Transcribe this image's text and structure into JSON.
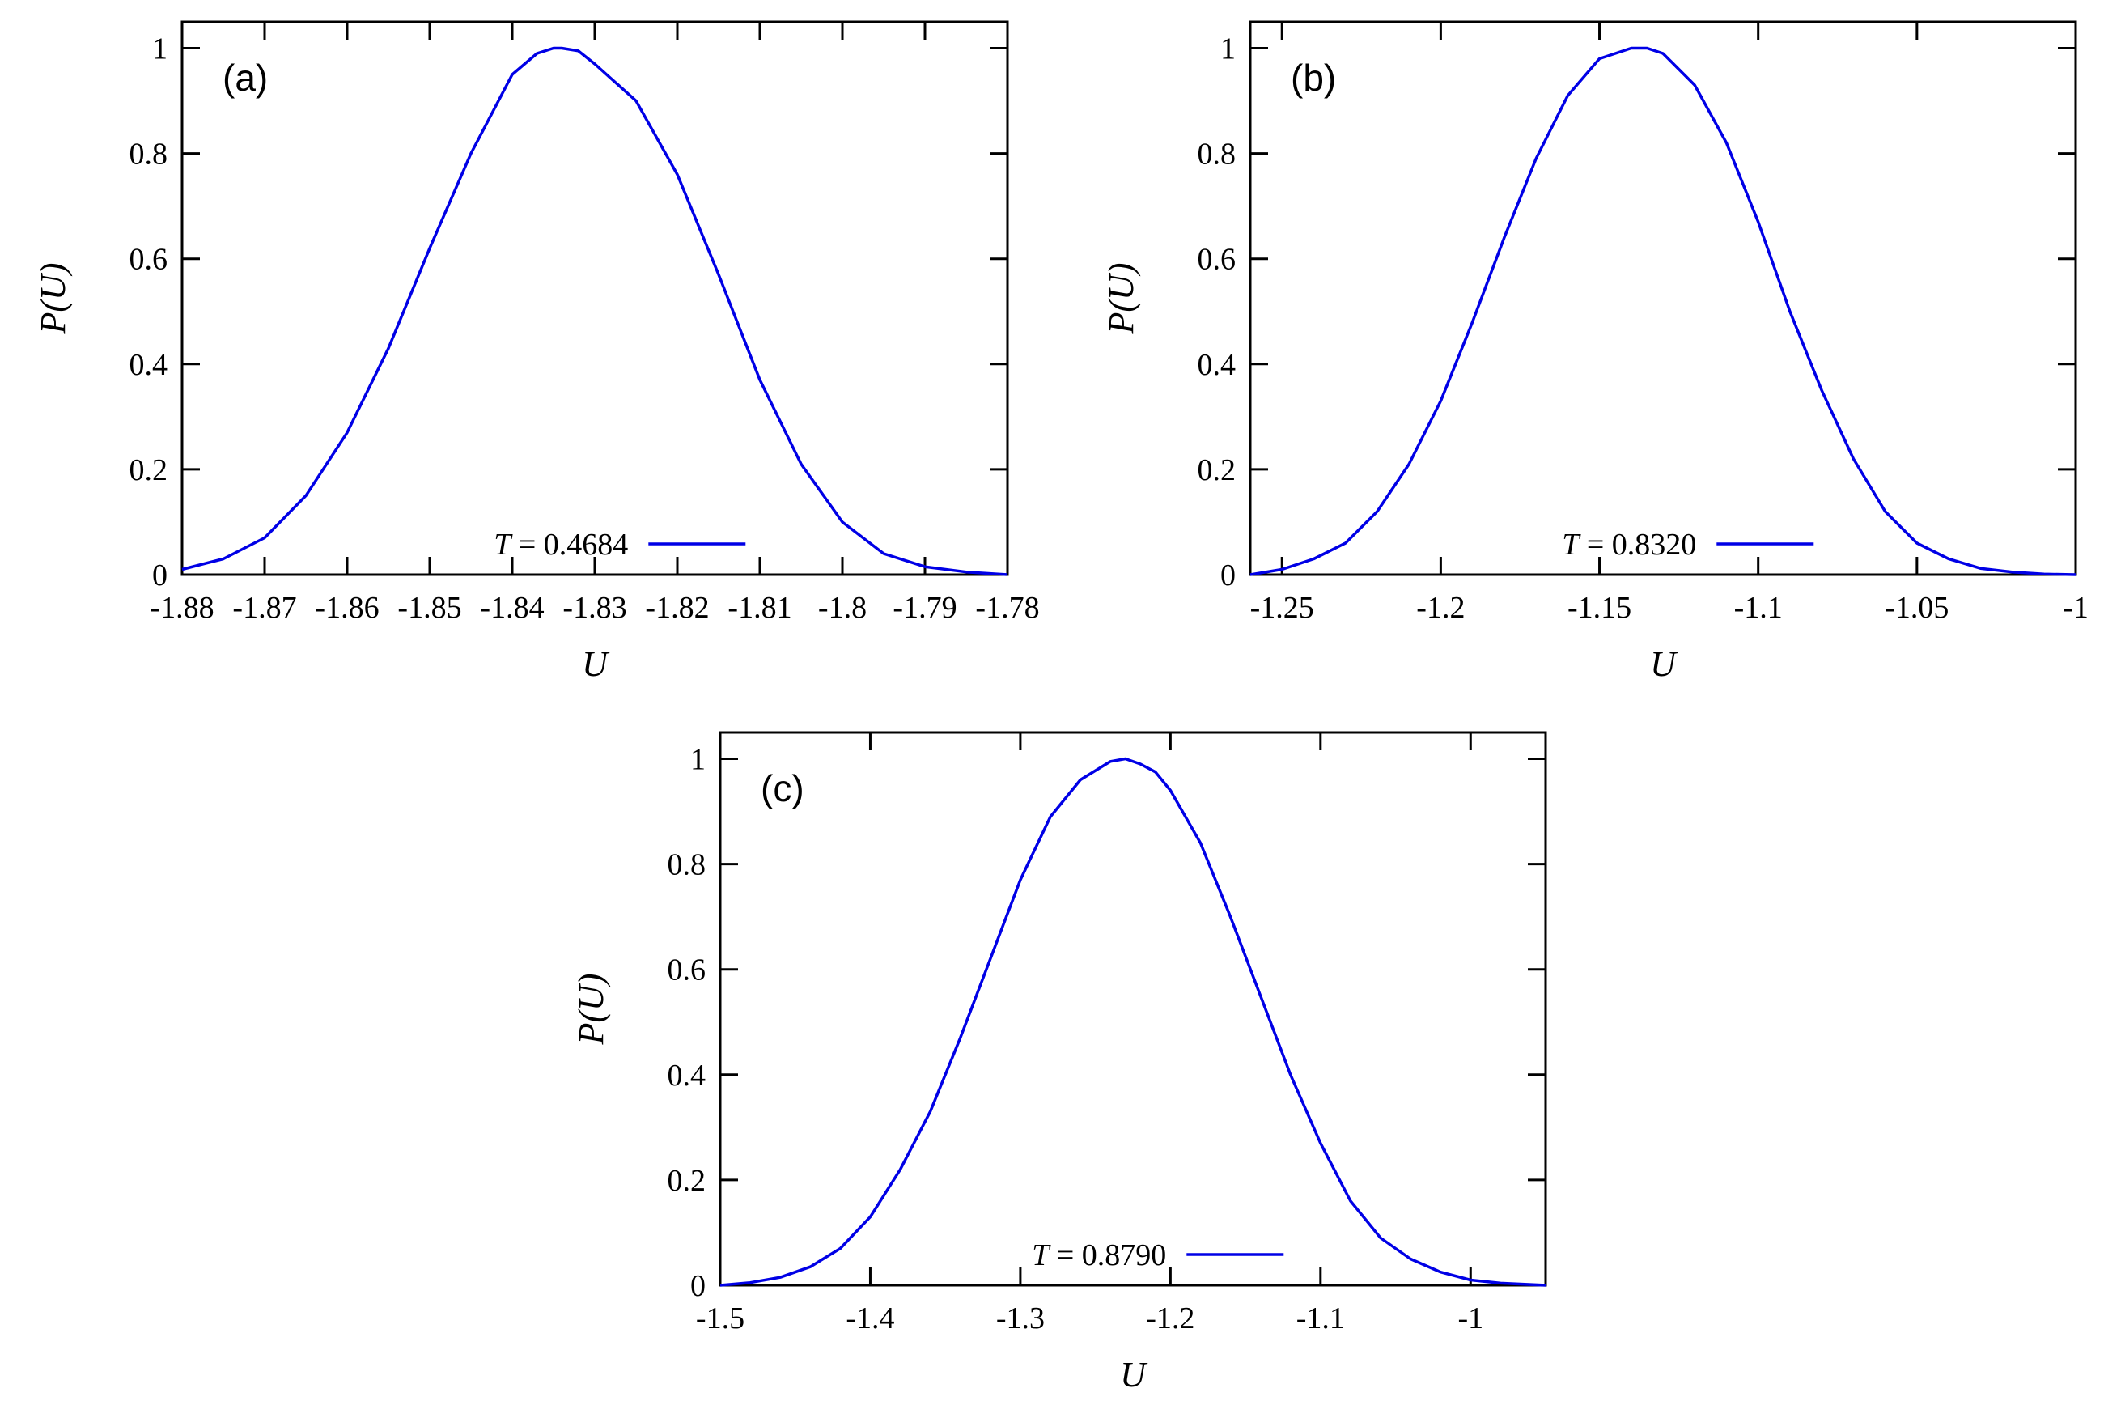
{
  "chart_data": [
    {
      "type": "line",
      "panel": "(a)",
      "xlabel": "U",
      "ylabel": "P(U)",
      "xlim": [
        -1.88,
        -1.78
      ],
      "ylim": [
        0,
        1.05
      ],
      "xticks": [
        "-1.88",
        "-1.87",
        "-1.86",
        "-1.85",
        "-1.84",
        "-1.83",
        "-1.82",
        "-1.81",
        "-1.8",
        "-1.79",
        "-1.78"
      ],
      "yticks": [
        "0",
        "0.2",
        "0.4",
        "0.6",
        "0.8",
        "1"
      ],
      "legend": {
        "prefix": "T",
        "value": " = 0.4684"
      },
      "color": "#0000e6",
      "series": [
        {
          "x": [
            -1.88,
            -1.875,
            -1.87,
            -1.865,
            -1.86,
            -1.855,
            -1.85,
            -1.845,
            -1.84,
            -1.837,
            -1.835,
            -1.834,
            -1.832,
            -1.83,
            -1.825,
            -1.82,
            -1.815,
            -1.81,
            -1.805,
            -1.8,
            -1.795,
            -1.79,
            -1.785,
            -1.78
          ],
          "y": [
            0.01,
            0.03,
            0.07,
            0.15,
            0.27,
            0.43,
            0.62,
            0.8,
            0.95,
            0.99,
            1.0,
            1.0,
            0.995,
            0.97,
            0.9,
            0.76,
            0.57,
            0.37,
            0.21,
            0.1,
            0.04,
            0.015,
            0.005,
            0.0
          ]
        }
      ]
    },
    {
      "type": "line",
      "panel": "(b)",
      "xlabel": "U",
      "ylabel": "P(U)",
      "xlim": [
        -1.26,
        -1.0
      ],
      "ylim": [
        0,
        1.05
      ],
      "xticks": [
        "-1.25",
        "-1.2",
        "-1.15",
        "-1.1",
        "-1.05",
        "-1"
      ],
      "yticks": [
        "0",
        "0.2",
        "0.4",
        "0.6",
        "0.8",
        "1"
      ],
      "legend": {
        "prefix": "T",
        "value": " = 0.8320"
      },
      "color": "#0000e6",
      "series": [
        {
          "x": [
            -1.26,
            -1.25,
            -1.24,
            -1.23,
            -1.22,
            -1.21,
            -1.2,
            -1.19,
            -1.18,
            -1.17,
            -1.16,
            -1.15,
            -1.14,
            -1.135,
            -1.13,
            -1.12,
            -1.11,
            -1.1,
            -1.09,
            -1.08,
            -1.07,
            -1.06,
            -1.05,
            -1.04,
            -1.03,
            -1.02,
            -1.01,
            -1.0
          ],
          "y": [
            0.0,
            0.01,
            0.03,
            0.06,
            0.12,
            0.21,
            0.33,
            0.48,
            0.64,
            0.79,
            0.91,
            0.98,
            1.0,
            1.0,
            0.99,
            0.93,
            0.82,
            0.67,
            0.5,
            0.35,
            0.22,
            0.12,
            0.06,
            0.03,
            0.012,
            0.005,
            0.001,
            0.0
          ]
        }
      ]
    },
    {
      "type": "line",
      "panel": "(c)",
      "xlabel": "U",
      "ylabel": "P(U)",
      "xlim": [
        -1.5,
        -0.95
      ],
      "ylim": [
        0,
        1.05
      ],
      "xticks": [
        "-1.5",
        "-1.4",
        "-1.3",
        "-1.2",
        "-1.1",
        "-1"
      ],
      "yticks": [
        "0",
        "0.2",
        "0.4",
        "0.6",
        "0.8",
        "1"
      ],
      "legend": {
        "prefix": "T",
        "value": " = 0.8790"
      },
      "color": "#0000e6",
      "series": [
        {
          "x": [
            -1.5,
            -1.48,
            -1.46,
            -1.44,
            -1.42,
            -1.4,
            -1.38,
            -1.36,
            -1.34,
            -1.32,
            -1.3,
            -1.28,
            -1.26,
            -1.24,
            -1.23,
            -1.22,
            -1.21,
            -1.2,
            -1.18,
            -1.16,
            -1.14,
            -1.12,
            -1.1,
            -1.08,
            -1.06,
            -1.04,
            -1.02,
            -1.0,
            -0.98,
            -0.95
          ],
          "y": [
            0.0,
            0.005,
            0.015,
            0.035,
            0.07,
            0.13,
            0.22,
            0.33,
            0.47,
            0.62,
            0.77,
            0.89,
            0.96,
            0.995,
            1.0,
            0.99,
            0.975,
            0.94,
            0.84,
            0.7,
            0.55,
            0.4,
            0.27,
            0.16,
            0.09,
            0.05,
            0.025,
            0.01,
            0.004,
            0.0
          ]
        }
      ]
    }
  ]
}
